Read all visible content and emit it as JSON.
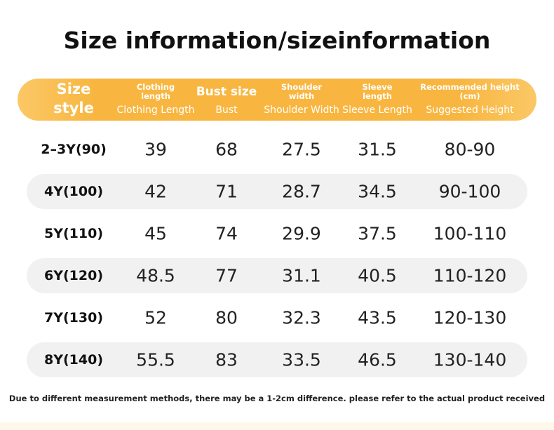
{
  "title": "Size information/sizeinformation",
  "table": {
    "header": [
      {
        "top": "Size",
        "bottom": "style"
      },
      {
        "top": "Clothing length",
        "bottom": "Clothing Length"
      },
      {
        "top": "Bust size",
        "bottom": "Bust"
      },
      {
        "top": "Shoulder width",
        "bottom": "Shoulder Width"
      },
      {
        "top": "Sleeve length",
        "bottom": "Sleeve Length"
      },
      {
        "top": "Recommended height (cm)",
        "bottom": "Suggested Height"
      }
    ],
    "rows": [
      [
        "2–3Y(90)",
        "39",
        "68",
        "27.5",
        "31.5",
        "80-90"
      ],
      [
        "4Y(100)",
        "42",
        "71",
        "28.7",
        "34.5",
        "90-100"
      ],
      [
        "5Y(110)",
        "45",
        "74",
        "29.9",
        "37.5",
        "100-110"
      ],
      [
        "6Y(120)",
        "48.5",
        "77",
        "31.1",
        "40.5",
        "110-120"
      ],
      [
        "7Y(130)",
        "52",
        "80",
        "32.3",
        "43.5",
        "120-130"
      ],
      [
        "8Y(140)",
        "55.5",
        "83",
        "33.5",
        "46.5",
        "130-140"
      ]
    ]
  },
  "footnote": "Due to different measurement methods, there may be a 1-2cm difference. please refer to the actual product received"
}
